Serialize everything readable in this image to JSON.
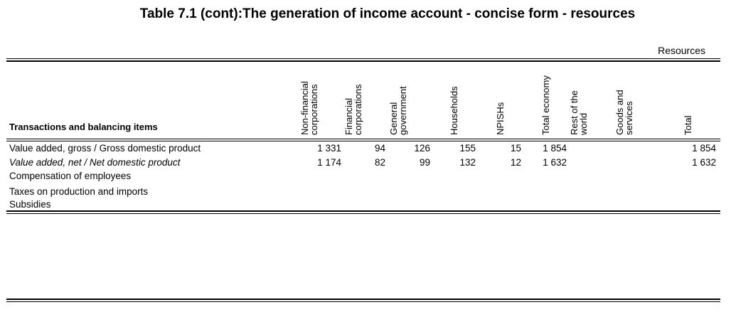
{
  "title": "Table 7.1 (cont):The generation of income account - concise form - resources",
  "resources_label": "Resources",
  "header": {
    "row_label_title": "Transactions and balancing items",
    "columns": [
      {
        "line1": "Non-financial",
        "line2": "corporations"
      },
      {
        "line1": "Financial",
        "line2": "corporations"
      },
      {
        "line1": "General",
        "line2": "government"
      },
      {
        "line1": "Households",
        "line2": ""
      },
      {
        "line1": "NPISHs",
        "line2": ""
      },
      {
        "line1": "Total economy",
        "line2": ""
      },
      {
        "line1": "Rest of the",
        "line2": "world"
      },
      {
        "line1": "Goods and",
        "line2": "services"
      },
      {
        "line1": "Total",
        "line2": ""
      }
    ]
  },
  "rows": [
    {
      "label": "Value added, gross / Gross domestic product",
      "style": "normal",
      "values": [
        "1 331",
        "94",
        "126",
        "155",
        "15",
        "1 854",
        "",
        "",
        "1 854"
      ]
    },
    {
      "label": "Value added, net / Net domestic product",
      "style": "italic",
      "values": [
        "1 174",
        "82",
        "99",
        "132",
        "12",
        "1 632",
        "",
        "",
        "1 632"
      ]
    },
    {
      "label": "Compensation of employees",
      "style": "normal",
      "values": [
        "",
        "",
        "",
        "",
        "",
        "",
        "",
        "",
        ""
      ]
    },
    {
      "label": "Taxes on production and imports",
      "style": "normal",
      "values": [
        "",
        "",
        "",
        "",
        "",
        "",
        "",
        "",
        ""
      ]
    },
    {
      "label": "Subsidies",
      "style": "normal",
      "values": [
        "",
        "",
        "",
        "",
        "",
        "",
        "",
        "",
        ""
      ]
    }
  ]
}
